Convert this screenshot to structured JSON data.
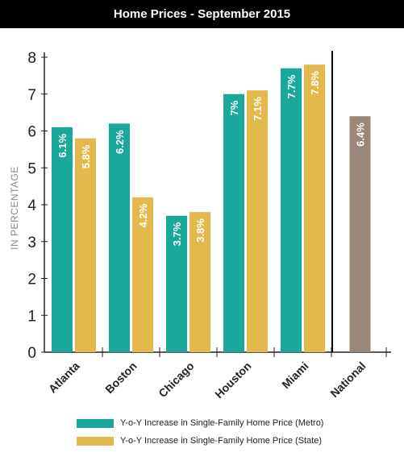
{
  "title": "Home Prices - September 2015",
  "colors": {
    "metro": "#1aa89a",
    "state": "#e3b84d",
    "national": "#9b877a"
  },
  "chart_data": {
    "type": "bar",
    "title": "Home Prices - September 2015",
    "ylabel": "IN PERCENTAGE",
    "xlabel": "",
    "ylim": [
      0,
      8
    ],
    "yticks": [
      "0",
      "1",
      "2",
      "3",
      "4",
      "5",
      "6",
      "7",
      "8"
    ],
    "categories": [
      "Atlanta",
      "Boston",
      "Chicago",
      "Houston",
      "Miami",
      "National"
    ],
    "series": [
      {
        "name": "Y-o-Y Increase in Single-Family Home Price (Metro)",
        "values": [
          6.1,
          6.2,
          3.7,
          7.0,
          7.7,
          null
        ],
        "labels": [
          "6.1%",
          "6.2%",
          "3.7%",
          "7%",
          "7.7%",
          ""
        ]
      },
      {
        "name": "Y-o-Y Increase in Single-Family Home Price (State)",
        "values": [
          5.8,
          4.2,
          3.8,
          7.1,
          7.8,
          null
        ],
        "labels": [
          "5.8%",
          "4.2%",
          "3.8%",
          "7.1%",
          "7.8%",
          ""
        ]
      }
    ],
    "national": {
      "value": 6.4,
      "label": "6.4%"
    },
    "grid": false
  }
}
